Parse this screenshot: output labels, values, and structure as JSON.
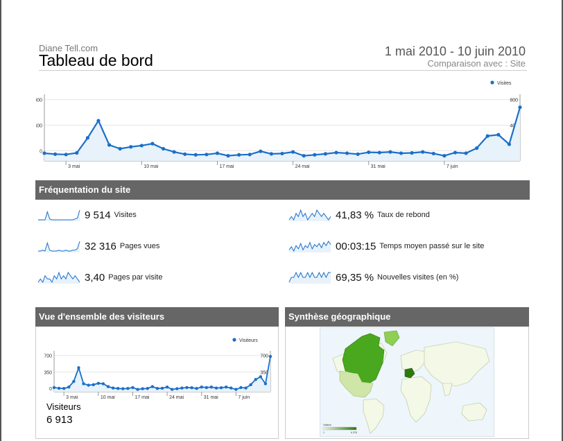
{
  "header": {
    "site_name": "Diane Tell.com",
    "title": "Tableau de bord",
    "date_range": "1 mai 2010 - 10 juin 2010",
    "comparison": "Comparaison avec : Site"
  },
  "colors": {
    "series": "#1a6fc9",
    "fill": "#e8f2fb",
    "bar": "#666666",
    "map_land": "#eef5dc",
    "map_high": "#4aa81e",
    "map_mid": "#8fcf54"
  },
  "chart_data": [
    {
      "type": "area",
      "legend": [
        "Visites"
      ],
      "legend_position": "top-right",
      "y_ticks": [
        "0",
        "400",
        "800"
      ],
      "ylim": [
        -160,
        840
      ],
      "x_ticks": [
        "3 mai",
        "10 mai",
        "17 mai",
        "24 mai",
        "31 mai",
        "7 juin"
      ],
      "x_tick_index": [
        2,
        9,
        16,
        23,
        30,
        37
      ],
      "series": [
        {
          "name": "Visites",
          "values": [
            -40,
            -55,
            -60,
            -35,
            200,
            470,
            90,
            30,
            60,
            80,
            110,
            30,
            -20,
            -55,
            -65,
            -60,
            -40,
            -80,
            -65,
            -60,
            -10,
            -50,
            -45,
            -20,
            -80,
            -65,
            -50,
            -30,
            -40,
            -55,
            -25,
            -30,
            -20,
            -40,
            -35,
            -20,
            -45,
            -80,
            -30,
            -40,
            40,
            230,
            250,
            100,
            680
          ]
        }
      ]
    },
    {
      "type": "area",
      "legend": [
        "Visiteurs"
      ],
      "legend_position": "top-right",
      "y_ticks": [
        "0",
        "350",
        "700"
      ],
      "ylim": [
        -70,
        740
      ],
      "x_ticks": [
        "3 mai",
        "10 mai",
        "17 mai",
        "24 mai",
        "31 mai",
        "7 juin"
      ],
      "x_tick_index": [
        2,
        9,
        16,
        23,
        30,
        37
      ],
      "series": [
        {
          "name": "Visiteurs",
          "values": [
            20,
            5,
            0,
            30,
            150,
            440,
            100,
            70,
            80,
            110,
            100,
            40,
            10,
            0,
            -5,
            0,
            20,
            -20,
            -5,
            0,
            40,
            0,
            5,
            30,
            -20,
            -5,
            10,
            20,
            15,
            0,
            30,
            20,
            30,
            10,
            15,
            30,
            10,
            -20,
            20,
            10,
            80,
            190,
            250,
            100,
            680
          ]
        }
      ]
    }
  ],
  "frequentation": {
    "title": "Fréquentation du site",
    "metrics": [
      {
        "value": "9 514",
        "label": "Visites",
        "trend": [
          3,
          3,
          3,
          3,
          12,
          4,
          3,
          3,
          3,
          3,
          3,
          3,
          3,
          3,
          3,
          3,
          4,
          5,
          14
        ]
      },
      {
        "value": "41,83 %",
        "label": "Taux de rebond",
        "trend": [
          6,
          7,
          6,
          8,
          7,
          9,
          7,
          8,
          6,
          7,
          8,
          7,
          9,
          8,
          7,
          8,
          7,
          6,
          7
        ]
      },
      {
        "value": "32 316",
        "label": "Pages vues",
        "trend": [
          3,
          3,
          4,
          3,
          13,
          4,
          3,
          3,
          3,
          4,
          3,
          3,
          4,
          3,
          3,
          4,
          4,
          6,
          15
        ]
      },
      {
        "value": "00:03:15",
        "label": "Temps moyen passé sur le site",
        "trend": [
          5,
          8,
          4,
          9,
          6,
          11,
          5,
          9,
          7,
          12,
          6,
          10,
          8,
          11,
          7,
          12,
          9,
          13,
          10
        ]
      },
      {
        "value": "3,40",
        "label": "Pages par visite",
        "trend": [
          8,
          9,
          8,
          10,
          9,
          9,
          8,
          10,
          9,
          11,
          9,
          10,
          9,
          11,
          10,
          9,
          10,
          9,
          8
        ]
      },
      {
        "value": "69,35 %",
        "label": "Nouvelles visites (en %)",
        "trend": [
          7,
          8,
          8,
          9,
          8,
          9,
          8,
          8,
          9,
          8,
          9,
          8,
          8,
          9,
          8,
          9,
          8,
          9,
          9
        ]
      }
    ]
  },
  "visitors": {
    "title": "Vue d'ensemble des visiteurs",
    "label": "Visiteurs",
    "value": "6 913"
  },
  "geo": {
    "title": "Synthèse géographique",
    "legend_label": "Visites",
    "legend_min": "1",
    "legend_max": "6 378"
  }
}
